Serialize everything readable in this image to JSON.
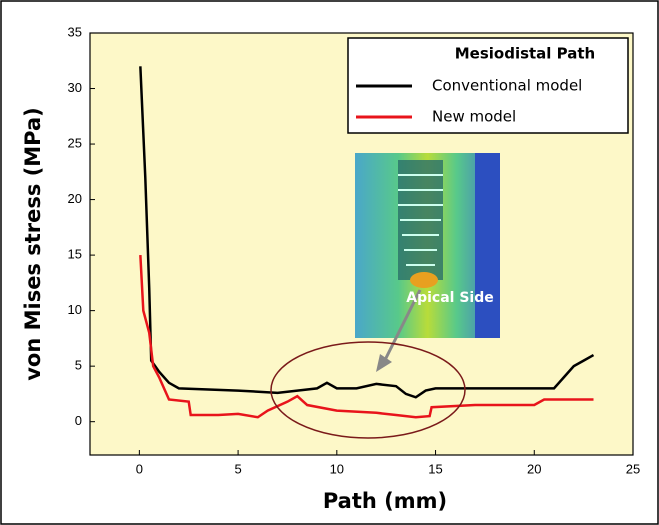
{
  "chart_data": {
    "type": "line",
    "xlabel": "Path (mm)",
    "ylabel": "von Mises stress (MPa)",
    "legend_title": "Mesiodistal Path",
    "legend": "upper right",
    "annotation": "Apical Side",
    "xlim": [
      -2.5,
      25
    ],
    "ylim": [
      -3,
      35
    ],
    "xticks": [
      0,
      5,
      10,
      15,
      20,
      25
    ],
    "yticks": [
      0,
      5,
      10,
      15,
      20,
      25,
      30,
      35
    ],
    "background": "#fdf8c8",
    "series": [
      {
        "name": "Conventional model",
        "color": "#000000",
        "x": [
          0.05,
          0.3,
          0.5,
          0.6,
          0.8,
          1.0,
          1.5,
          2,
          5,
          7,
          8,
          9,
          9.5,
          10,
          11,
          12,
          13,
          13.5,
          14,
          14.5,
          15,
          20,
          21,
          21.5,
          22,
          22.5,
          23
        ],
        "values": [
          32,
          22,
          12,
          5.5,
          5,
          4.5,
          3.5,
          3,
          2.8,
          2.6,
          2.8,
          3.0,
          3.5,
          3.0,
          3.0,
          3.4,
          3.2,
          2.5,
          2.2,
          2.8,
          3,
          3,
          3,
          4,
          5,
          5.5,
          6
        ]
      },
      {
        "name": "New model",
        "color": "#e8141b",
        "x": [
          0.05,
          0.2,
          0.5,
          0.7,
          1,
          1.5,
          2.5,
          2.6,
          4,
          5,
          6,
          6.5,
          7.5,
          8,
          8.5,
          10,
          12,
          13,
          14,
          14.7,
          14.8,
          17,
          19,
          20,
          20.5,
          23
        ],
        "values": [
          15,
          10,
          8,
          5,
          4,
          2,
          1.8,
          0.6,
          0.6,
          0.7,
          0.4,
          1,
          1.8,
          2.3,
          1.5,
          1.0,
          0.8,
          0.6,
          0.4,
          0.5,
          1.3,
          1.5,
          1.5,
          1.5,
          2.0,
          2.0
        ]
      }
    ]
  }
}
